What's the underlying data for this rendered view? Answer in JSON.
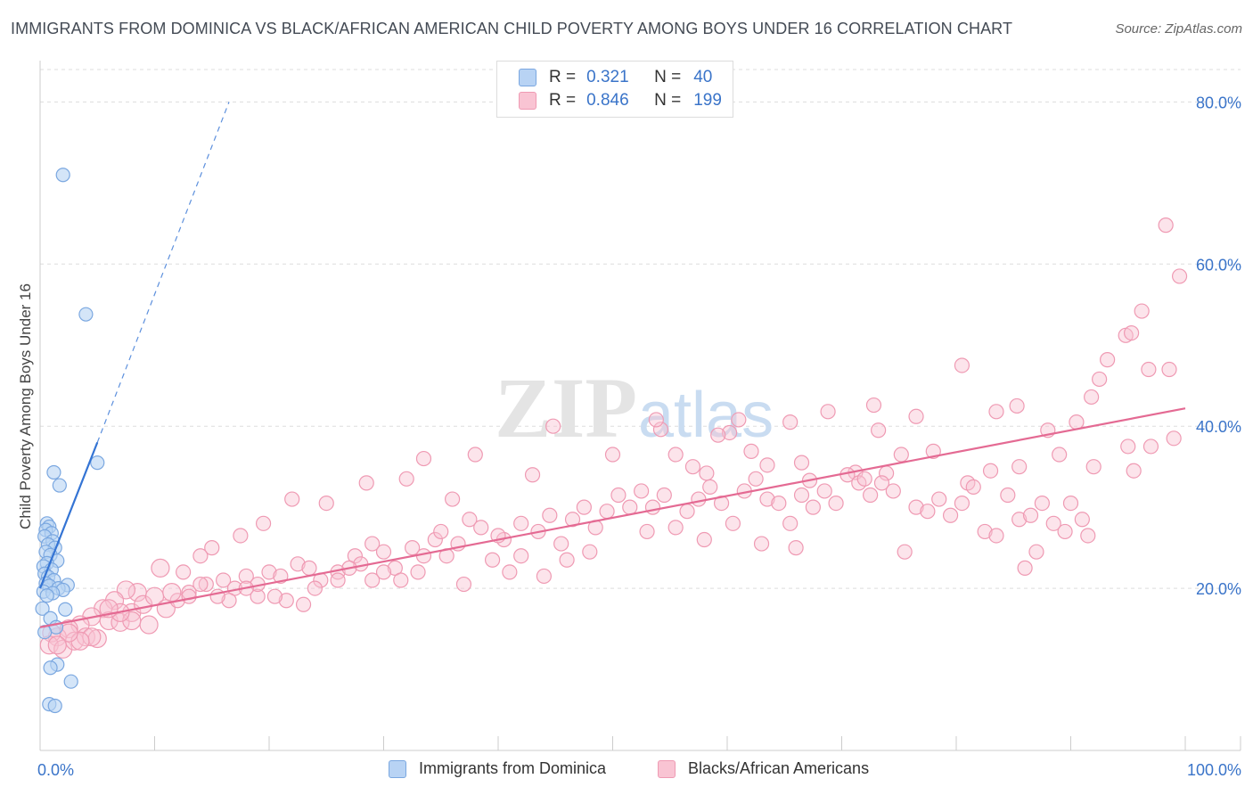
{
  "title": "IMMIGRANTS FROM DOMINICA VS BLACK/AFRICAN AMERICAN CHILD POVERTY AMONG BOYS UNDER 16 CORRELATION CHART",
  "source": "Source: ZipAtlas.com",
  "watermark": {
    "zip": "ZIP",
    "atlas": "atlas"
  },
  "legend": {
    "r_label": "R =",
    "n_label": "N =",
    "rows": [
      {
        "r": "0.321",
        "n": "40",
        "fill": "#b8d3f4",
        "stroke": "#7aa7e0"
      },
      {
        "r": "0.846",
        "n": "199",
        "fill": "#f9c4d3",
        "stroke": "#ef9ab3"
      }
    ]
  },
  "bottom_legend": [
    {
      "label": "Immigrants from Dominica",
      "fill": "#b8d3f4",
      "stroke": "#7aa7e0"
    },
    {
      "label": "Blacks/African Americans",
      "fill": "#f9c4d3",
      "stroke": "#ef9ab3"
    }
  ],
  "chart_data": {
    "type": "scatter",
    "title": "IMMIGRANTS FROM DOMINICA VS BLACK/AFRICAN AMERICAN CHILD POVERTY AMONG BOYS UNDER 16 CORRELATION CHART",
    "xlabel": "",
    "ylabel": "Child Poverty Among Boys Under 16",
    "xlim": [
      0,
      100
    ],
    "ylim": [
      0,
      84
    ],
    "x_tick_labels": [
      "0.0%",
      "100.0%"
    ],
    "y_ticks": [
      20,
      40,
      60,
      80
    ],
    "y_tick_labels": [
      "20.0%",
      "40.0%",
      "60.0%",
      "80.0%"
    ],
    "grid": true,
    "series": [
      {
        "name": "Immigrants from Dominica",
        "color": "#7aa7e0",
        "fill": "#b8d3f4",
        "line_color": "#3474d4",
        "trend": {
          "x0": 0,
          "y0": 20.0,
          "x1": 5.0,
          "y1": 38.0,
          "dash_x1": 16.5,
          "dash_y1": 80.0
        },
        "points": [
          [
            2.0,
            71.0
          ],
          [
            4.0,
            53.8
          ],
          [
            5.0,
            35.5
          ],
          [
            1.2,
            34.3
          ],
          [
            1.7,
            32.7
          ],
          [
            0.6,
            28.0
          ],
          [
            0.8,
            27.6
          ],
          [
            0.5,
            27.2
          ],
          [
            1.0,
            26.8
          ],
          [
            0.4,
            26.4
          ],
          [
            1.1,
            25.8
          ],
          [
            0.7,
            25.4
          ],
          [
            1.3,
            25.0
          ],
          [
            0.5,
            24.5
          ],
          [
            0.9,
            24.1
          ],
          [
            1.5,
            23.4
          ],
          [
            0.6,
            23.1
          ],
          [
            0.3,
            22.7
          ],
          [
            1.0,
            22.3
          ],
          [
            0.4,
            21.8
          ],
          [
            0.7,
            21.4
          ],
          [
            1.2,
            21.0
          ],
          [
            0.5,
            20.6
          ],
          [
            0.8,
            20.3
          ],
          [
            2.4,
            20.4
          ],
          [
            1.6,
            20.0
          ],
          [
            2.0,
            19.8
          ],
          [
            0.3,
            19.6
          ],
          [
            1.1,
            19.4
          ],
          [
            0.6,
            19.1
          ],
          [
            0.2,
            17.5
          ],
          [
            2.2,
            17.4
          ],
          [
            0.9,
            16.3
          ],
          [
            1.4,
            15.2
          ],
          [
            0.4,
            14.6
          ],
          [
            1.5,
            10.6
          ],
          [
            0.9,
            10.2
          ],
          [
            2.7,
            8.5
          ],
          [
            0.8,
            5.7
          ],
          [
            1.3,
            5.5
          ]
        ]
      },
      {
        "name": "Blacks/African Americans",
        "color": "#ef9ab3",
        "fill": "#f9c4d3",
        "line_color": "#e46a93",
        "trend": {
          "x0": 0,
          "y0": 15.2,
          "x1": 100,
          "y1": 42.2
        },
        "points": [
          [
            99.5,
            58.5
          ],
          [
            98.3,
            64.8
          ],
          [
            96.2,
            54.2
          ],
          [
            94.8,
            51.2
          ],
          [
            95.3,
            51.5
          ],
          [
            96.8,
            47.0
          ],
          [
            98.6,
            47.0
          ],
          [
            93.2,
            48.2
          ],
          [
            92.5,
            45.8
          ],
          [
            91.8,
            43.6
          ],
          [
            80.5,
            47.5
          ],
          [
            85.3,
            42.5
          ],
          [
            72.8,
            42.6
          ],
          [
            83.5,
            41.8
          ],
          [
            76.5,
            41.2
          ],
          [
            68.8,
            41.8
          ],
          [
            73.2,
            39.5
          ],
          [
            65.5,
            40.5
          ],
          [
            61.0,
            40.8
          ],
          [
            60.2,
            39.2
          ],
          [
            59.2,
            38.9
          ],
          [
            54.2,
            39.6
          ],
          [
            53.8,
            40.8
          ],
          [
            44.8,
            40.0
          ],
          [
            55.5,
            36.5
          ],
          [
            57.0,
            35.0
          ],
          [
            58.2,
            34.2
          ],
          [
            62.1,
            36.9
          ],
          [
            63.5,
            35.2
          ],
          [
            66.5,
            35.5
          ],
          [
            67.2,
            33.3
          ],
          [
            71.2,
            34.3
          ],
          [
            73.9,
            34.2
          ],
          [
            75.2,
            36.5
          ],
          [
            78.0,
            36.9
          ],
          [
            81.0,
            33.0
          ],
          [
            83.0,
            34.5
          ],
          [
            85.5,
            35.0
          ],
          [
            88.0,
            39.5
          ],
          [
            89.0,
            36.5
          ],
          [
            90.5,
            40.5
          ],
          [
            95.0,
            37.5
          ],
          [
            97.0,
            37.5
          ],
          [
            99.0,
            38.5
          ],
          [
            95.5,
            34.5
          ],
          [
            92.0,
            35.0
          ],
          [
            50.0,
            36.5
          ],
          [
            43.0,
            34.0
          ],
          [
            38.0,
            36.5
          ],
          [
            32.0,
            33.5
          ],
          [
            33.5,
            36.0
          ],
          [
            36.0,
            31.0
          ],
          [
            28.5,
            33.0
          ],
          [
            25.0,
            30.5
          ],
          [
            22.0,
            31.0
          ],
          [
            19.5,
            28.0
          ],
          [
            17.5,
            26.5
          ],
          [
            15.0,
            25.0
          ],
          [
            14.0,
            24.0
          ],
          [
            12.5,
            22.0
          ],
          [
            10.5,
            22.5
          ],
          [
            8.5,
            19.5
          ],
          [
            7.5,
            19.8
          ],
          [
            6.5,
            18.5
          ],
          [
            5.5,
            17.5
          ],
          [
            4.5,
            16.5
          ],
          [
            3.5,
            15.5
          ],
          [
            2.5,
            15.0
          ],
          [
            1.5,
            14.0
          ],
          [
            1.0,
            14.5
          ],
          [
            0.8,
            13.0
          ],
          [
            2.0,
            12.5
          ],
          [
            3.0,
            13.5
          ],
          [
            4.0,
            14.0
          ],
          [
            5.0,
            13.8
          ],
          [
            6.0,
            16.0
          ],
          [
            7.0,
            15.8
          ],
          [
            8.0,
            17.0
          ],
          [
            9.0,
            18.0
          ],
          [
            10.0,
            19.0
          ],
          [
            11.0,
            17.5
          ],
          [
            12.0,
            18.5
          ],
          [
            13.0,
            19.5
          ],
          [
            14.5,
            20.5
          ],
          [
            16.0,
            21.0
          ],
          [
            17.0,
            20.0
          ],
          [
            18.0,
            21.5
          ],
          [
            19.0,
            19.0
          ],
          [
            20.0,
            22.0
          ],
          [
            21.0,
            21.5
          ],
          [
            22.5,
            23.0
          ],
          [
            23.5,
            22.5
          ],
          [
            24.5,
            21.0
          ],
          [
            26.0,
            22.0
          ],
          [
            27.5,
            24.0
          ],
          [
            28.0,
            23.0
          ],
          [
            29.0,
            25.5
          ],
          [
            30.0,
            24.5
          ],
          [
            31.0,
            22.5
          ],
          [
            32.5,
            25.0
          ],
          [
            33.5,
            24.0
          ],
          [
            34.5,
            26.0
          ],
          [
            35.0,
            27.0
          ],
          [
            36.5,
            25.5
          ],
          [
            37.5,
            28.5
          ],
          [
            38.5,
            27.5
          ],
          [
            39.5,
            23.5
          ],
          [
            40.5,
            26.0
          ],
          [
            41.0,
            22.0
          ],
          [
            42.0,
            28.0
          ],
          [
            43.5,
            27.0
          ],
          [
            44.5,
            29.0
          ],
          [
            45.5,
            25.5
          ],
          [
            46.5,
            28.5
          ],
          [
            47.5,
            30.0
          ],
          [
            48.5,
            27.5
          ],
          [
            49.5,
            29.5
          ],
          [
            50.5,
            31.5
          ],
          [
            51.5,
            30.0
          ],
          [
            52.5,
            32.0
          ],
          [
            53.5,
            30.0
          ],
          [
            54.5,
            31.5
          ],
          [
            55.5,
            27.5
          ],
          [
            56.5,
            29.5
          ],
          [
            57.5,
            31.0
          ],
          [
            58.5,
            32.5
          ],
          [
            59.5,
            30.5
          ],
          [
            60.5,
            28.0
          ],
          [
            61.5,
            32.0
          ],
          [
            62.5,
            33.5
          ],
          [
            63.5,
            31.0
          ],
          [
            64.5,
            30.5
          ],
          [
            65.5,
            28.0
          ],
          [
            66.5,
            31.5
          ],
          [
            67.5,
            30.0
          ],
          [
            68.5,
            32.0
          ],
          [
            69.5,
            30.5
          ],
          [
            70.5,
            34.0
          ],
          [
            71.5,
            33.0
          ],
          [
            72.5,
            31.5
          ],
          [
            73.5,
            33.0
          ],
          [
            74.5,
            32.0
          ],
          [
            75.5,
            24.5
          ],
          [
            76.5,
            30.0
          ],
          [
            77.5,
            29.5
          ],
          [
            78.5,
            31.0
          ],
          [
            79.5,
            29.0
          ],
          [
            80.5,
            30.5
          ],
          [
            81.5,
            32.5
          ],
          [
            82.5,
            27.0
          ],
          [
            83.5,
            26.5
          ],
          [
            84.5,
            31.5
          ],
          [
            85.5,
            28.5
          ],
          [
            86.5,
            29.0
          ],
          [
            87.5,
            30.5
          ],
          [
            88.5,
            28.0
          ],
          [
            89.5,
            27.0
          ],
          [
            90.0,
            30.5
          ],
          [
            91.0,
            28.5
          ],
          [
            91.5,
            26.5
          ],
          [
            87.0,
            24.5
          ],
          [
            86.0,
            22.5
          ],
          [
            66.0,
            25.0
          ],
          [
            63.0,
            25.5
          ],
          [
            58.0,
            26.0
          ],
          [
            53.0,
            27.0
          ],
          [
            48.0,
            24.5
          ],
          [
            46.0,
            23.5
          ],
          [
            44.0,
            21.5
          ],
          [
            42.0,
            24.0
          ],
          [
            40.0,
            26.5
          ],
          [
            37.0,
            20.5
          ],
          [
            35.5,
            24.0
          ],
          [
            33.0,
            22.0
          ],
          [
            31.5,
            21.0
          ],
          [
            30.0,
            22.0
          ],
          [
            29.0,
            21.0
          ],
          [
            27.0,
            22.5
          ],
          [
            26.0,
            21.0
          ],
          [
            24.0,
            20.0
          ],
          [
            23.0,
            18.0
          ],
          [
            21.5,
            18.5
          ],
          [
            20.5,
            19.0
          ],
          [
            19.0,
            20.5
          ],
          [
            18.0,
            20.0
          ],
          [
            16.5,
            18.5
          ],
          [
            15.5,
            19.0
          ],
          [
            14.0,
            20.5
          ],
          [
            13.0,
            19.0
          ],
          [
            11.5,
            19.5
          ],
          [
            9.5,
            15.5
          ],
          [
            8.0,
            16.0
          ],
          [
            7.0,
            17.0
          ],
          [
            6.0,
            17.5
          ],
          [
            4.5,
            14.0
          ],
          [
            3.5,
            13.5
          ],
          [
            2.5,
            14.5
          ],
          [
            1.5,
            13.0
          ],
          [
            72.0,
            33.5
          ]
        ]
      }
    ]
  }
}
